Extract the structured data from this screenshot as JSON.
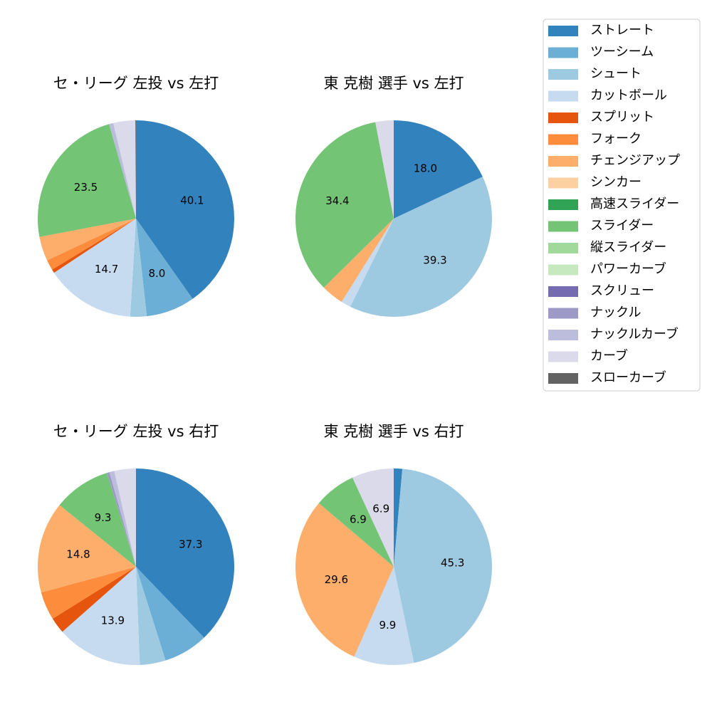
{
  "legend": {
    "entries": [
      {
        "label": "ストレート",
        "color": "#3182bd"
      },
      {
        "label": "ツーシーム",
        "color": "#6baed6"
      },
      {
        "label": "シュート",
        "color": "#9ecae1"
      },
      {
        "label": "カットボール",
        "color": "#c6dbef"
      },
      {
        "label": "スプリット",
        "color": "#e6550d"
      },
      {
        "label": "フォーク",
        "color": "#fd8d3c"
      },
      {
        "label": "チェンジアップ",
        "color": "#fdae6b"
      },
      {
        "label": "シンカー",
        "color": "#fdd0a2"
      },
      {
        "label": "高速スライダー",
        "color": "#31a354"
      },
      {
        "label": "スライダー",
        "color": "#74c476"
      },
      {
        "label": "縦スライダー",
        "color": "#a1d99b"
      },
      {
        "label": "パワーカーブ",
        "color": "#c7e9c0"
      },
      {
        "label": "スクリュー",
        "color": "#756bb1"
      },
      {
        "label": "ナックル",
        "color": "#9e9ac8"
      },
      {
        "label": "ナックルカーブ",
        "color": "#bcbddc"
      },
      {
        "label": "カーブ",
        "color": "#dadaeb"
      },
      {
        "label": "スローカーブ",
        "color": "#636363"
      }
    ]
  },
  "chart_data": [
    {
      "type": "pie",
      "title": "セ・リーグ 左投 vs 左打",
      "slices": [
        {
          "pitch": "ストレート",
          "value": 40.1,
          "label": "40.1"
        },
        {
          "pitch": "ツーシーム",
          "value": 8.0,
          "label": "8.0"
        },
        {
          "pitch": "シュート",
          "value": 2.7,
          "label": ""
        },
        {
          "pitch": "カットボール",
          "value": 14.7,
          "label": "14.7"
        },
        {
          "pitch": "スプリット",
          "value": 0.6,
          "label": ""
        },
        {
          "pitch": "フォーク",
          "value": 1.7,
          "label": ""
        },
        {
          "pitch": "チェンジアップ",
          "value": 4.0,
          "label": ""
        },
        {
          "pitch": "スライダー",
          "value": 23.5,
          "label": "23.5"
        },
        {
          "pitch": "ナックルカーブ",
          "value": 0.7,
          "label": ""
        },
        {
          "pitch": "カーブ",
          "value": 3.6,
          "label": ""
        },
        {
          "pitch": "スローカーブ",
          "value": 0.1,
          "label": ""
        }
      ]
    },
    {
      "type": "pie",
      "title": "東 克樹 選手 vs 左打",
      "slices": [
        {
          "pitch": "ストレート",
          "value": 18.0,
          "label": "18.0"
        },
        {
          "pitch": "シュート",
          "value": 39.3,
          "label": "39.3"
        },
        {
          "pitch": "カットボール",
          "value": 1.6,
          "label": ""
        },
        {
          "pitch": "チェンジアップ",
          "value": 3.7,
          "label": ""
        },
        {
          "pitch": "スライダー",
          "value": 34.4,
          "label": "34.4"
        },
        {
          "pitch": "カーブ",
          "value": 3.0,
          "label": ""
        }
      ]
    },
    {
      "type": "pie",
      "title": "セ・リーグ 左投 vs 右打",
      "slices": [
        {
          "pitch": "ストレート",
          "value": 37.3,
          "label": "37.3"
        },
        {
          "pitch": "ツーシーム",
          "value": 7.2,
          "label": ""
        },
        {
          "pitch": "シュート",
          "value": 4.2,
          "label": ""
        },
        {
          "pitch": "カットボール",
          "value": 13.9,
          "label": "13.9"
        },
        {
          "pitch": "スプリット",
          "value": 2.6,
          "label": ""
        },
        {
          "pitch": "フォーク",
          "value": 4.6,
          "label": ""
        },
        {
          "pitch": "チェンジアップ",
          "value": 14.8,
          "label": "14.8"
        },
        {
          "pitch": "スライダー",
          "value": 9.3,
          "label": "9.3"
        },
        {
          "pitch": "ナックル",
          "value": 0.4,
          "label": ""
        },
        {
          "pitch": "ナックルカーブ",
          "value": 0.8,
          "label": ""
        },
        {
          "pitch": "カーブ",
          "value": 3.5,
          "label": ""
        }
      ]
    },
    {
      "type": "pie",
      "title": "東 克樹 選手 vs 右打",
      "slices": [
        {
          "pitch": "ストレート",
          "value": 1.4,
          "label": ""
        },
        {
          "pitch": "シュート",
          "value": 45.3,
          "label": "45.3"
        },
        {
          "pitch": "カットボール",
          "value": 9.9,
          "label": "9.9"
        },
        {
          "pitch": "チェンジアップ",
          "value": 29.6,
          "label": "29.6"
        },
        {
          "pitch": "スライダー",
          "value": 6.9,
          "label": "6.9"
        },
        {
          "pitch": "カーブ",
          "value": 6.9,
          "label": "6.9"
        }
      ]
    }
  ]
}
